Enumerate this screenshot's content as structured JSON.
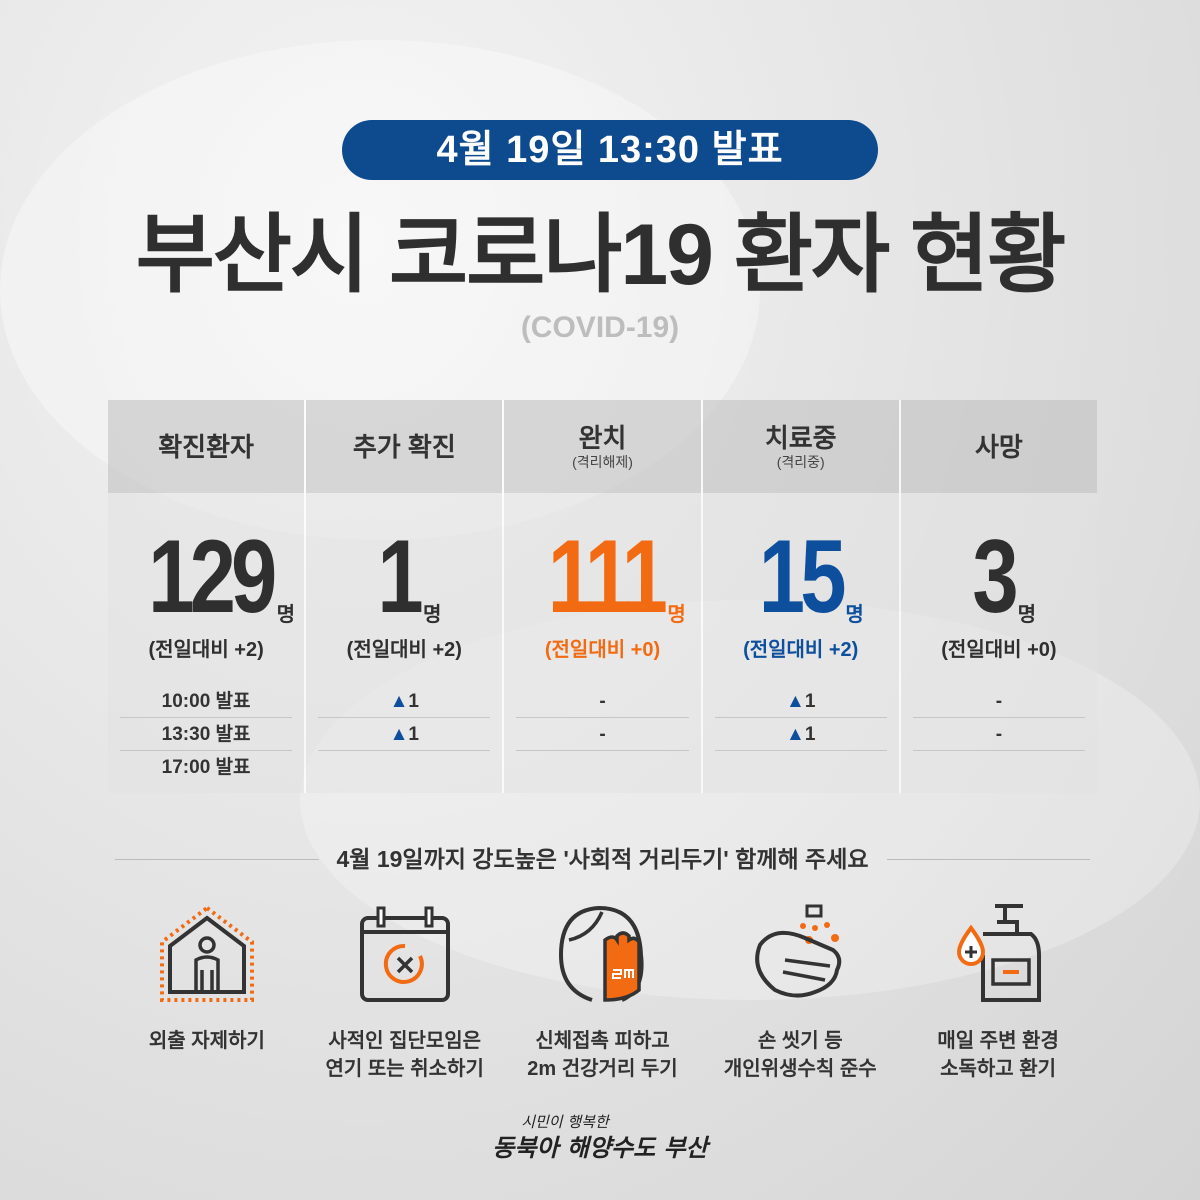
{
  "badge": "4월 19일 13:30 발표",
  "title": "부산시 코로나19 환자 현황",
  "subtitle": "(COVID-19)",
  "colors": {
    "accent_blue": "#0d4a8e",
    "orange": "#f26b12",
    "blue": "#0d4f9c",
    "dark": "#333333"
  },
  "columns": [
    {
      "label": "확진환자",
      "sub": "",
      "value": "129",
      "unit": "명",
      "diff": "(전일대비 +2)",
      "color": "#2f2f2f",
      "rows": [
        "10:00 발표",
        "13:30 발표",
        "17:00 발표"
      ]
    },
    {
      "label": "추가 확진",
      "sub": "",
      "value": "1",
      "unit": "명",
      "diff": "(전일대비 +2)",
      "color": "#2f2f2f",
      "rows": [
        "▲1",
        "▲1",
        ""
      ]
    },
    {
      "label": "완치",
      "sub": "(격리해제)",
      "value": "111",
      "unit": "명",
      "diff": "(전일대비 +0)",
      "color": "#f26b12",
      "rows": [
        "-",
        "-",
        ""
      ]
    },
    {
      "label": "치료중",
      "sub": "(격리중)",
      "value": "15",
      "unit": "명",
      "diff": "(전일대비 +2)",
      "color": "#0d4f9c",
      "rows": [
        "▲1",
        "▲1",
        ""
      ]
    },
    {
      "label": "사망",
      "sub": "",
      "value": "3",
      "unit": "명",
      "diff": "(전일대비 +0)",
      "color": "#2f2f2f",
      "rows": [
        "-",
        "-",
        ""
      ]
    }
  ],
  "notice": "4월 19일까지 강도높은 '사회적 거리두기' 함께해 주세요",
  "tips": [
    {
      "icon": "house-person-icon",
      "line1": "외출 자제하기",
      "line2": ""
    },
    {
      "icon": "calendar-cancel-icon",
      "line1": "사적인 집단모임은",
      "line2": "연기 또는 취소하기"
    },
    {
      "icon": "face-hand-distance-icon",
      "line1": "신체접촉 피하고",
      "line2": "2m 건강거리 두기"
    },
    {
      "icon": "hand-washing-icon",
      "line1": "손 씻기 등",
      "line2": "개인위생수칙 준수"
    },
    {
      "icon": "sanitizer-icon",
      "line1": "매일 주변 환경",
      "line2": "소독하고 환기"
    }
  ],
  "slogan": {
    "line1": "시민이 행복한",
    "line2": "동북아 해양수도 부산"
  }
}
